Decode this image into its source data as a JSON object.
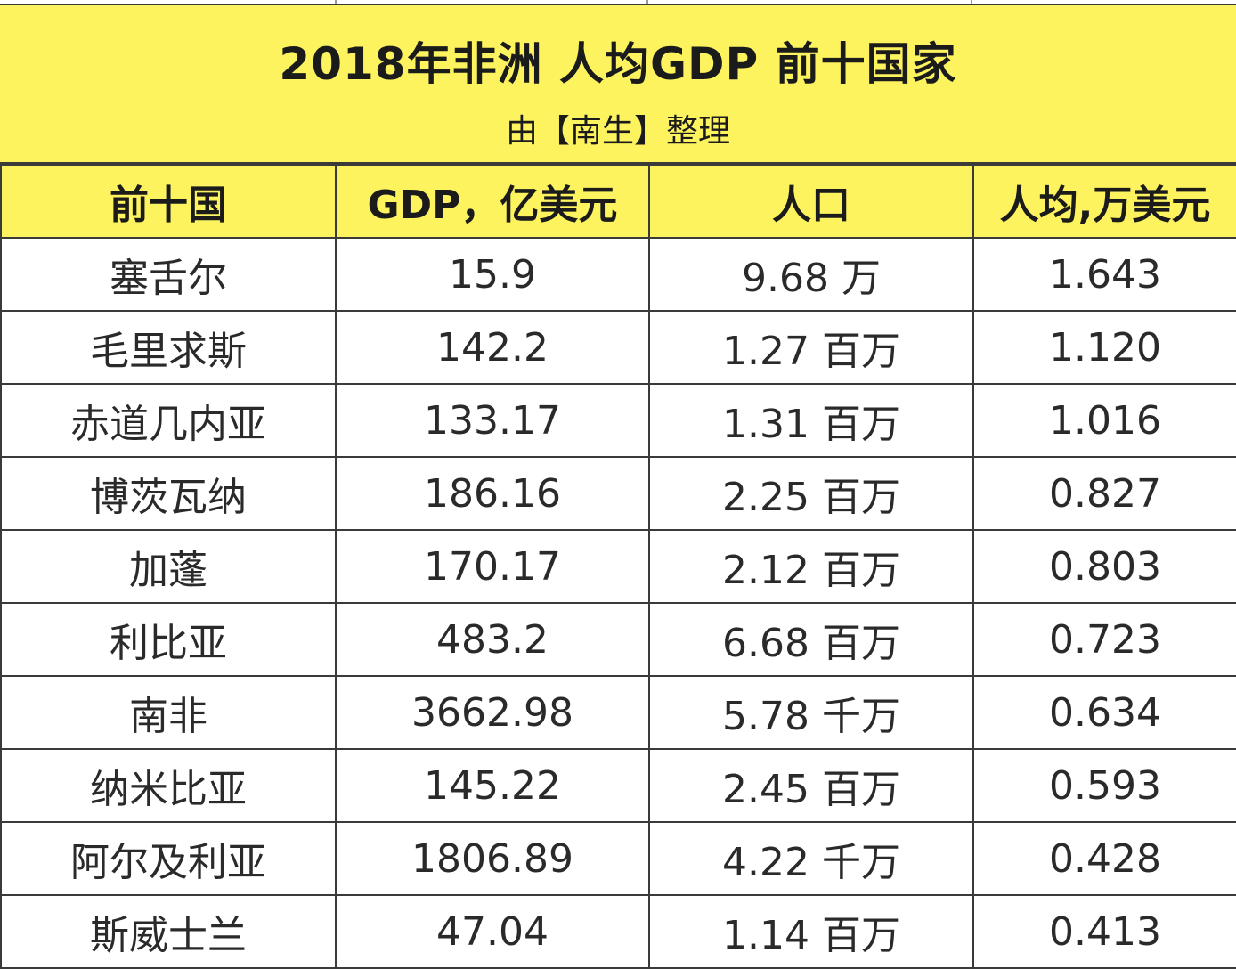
{
  "header": {
    "title": "2018年非洲 人均GDP 前十国家",
    "subtitle": "由【南生】整理"
  },
  "table": {
    "columns": [
      "前十国",
      "GDP，亿美元",
      "人口",
      "人均,万美元"
    ],
    "rows": [
      [
        "塞舌尔",
        "15.9",
        "9.68 万",
        "1.643"
      ],
      [
        "毛里求斯",
        "142.2",
        "1.27 百万",
        "1.120"
      ],
      [
        "赤道几内亚",
        "133.17",
        "1.31 百万",
        "1.016"
      ],
      [
        "博茨瓦纳",
        "186.16",
        "2.25 百万",
        "0.827"
      ],
      [
        "加蓬",
        "170.17",
        "2.12 百万",
        "0.803"
      ],
      [
        "利比亚",
        "483.2",
        "6.68 百万",
        "0.723"
      ],
      [
        "南非",
        "3662.98",
        "5.78 千万",
        "0.634"
      ],
      [
        "纳米比亚",
        "145.22",
        "2.45 百万",
        "0.593"
      ],
      [
        "阿尔及利亚",
        "1806.89",
        "4.22 千万",
        "0.428"
      ],
      [
        "斯威士兰",
        "47.04",
        "1.14 百万",
        "0.413"
      ]
    ]
  },
  "colors": {
    "header_fill": "#fdf35e",
    "grid_line": "#3a3a3a",
    "text": "#2a2a2a"
  }
}
